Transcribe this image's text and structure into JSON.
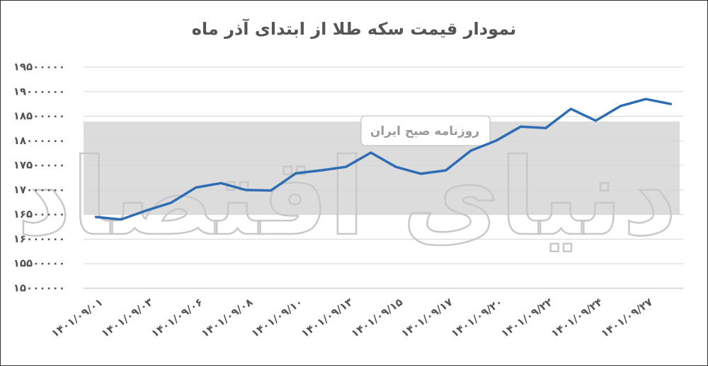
{
  "chart_data": {
    "type": "line",
    "title": "نمودار قیمت سکه طلا از ابتدای آذر ماه",
    "watermark": "دنیای اقتصاد",
    "watermark_subtitle": "روزنامه صبح ایران",
    "categories": [
      "۱۴۰۱/۰۹/۰۱",
      null,
      "۱۴۰۱/۰۹/۰۳",
      null,
      "۱۴۰۱/۰۹/۰۶",
      null,
      "۱۴۰۱/۰۹/۰۸",
      null,
      "۱۴۰۱/۰۹/۱۰",
      null,
      "۱۴۰۱/۰۹/۱۳",
      null,
      "۱۴۰۱/۰۹/۱۵",
      null,
      "۱۴۰۱/۰۹/۱۷",
      null,
      "۱۴۰۱/۰۹/۲۰",
      null,
      "۱۴۰۱/۰۹/۲۲",
      null,
      "۱۴۰۱/۰۹/۲۴",
      null,
      "۱۴۰۱/۰۹/۲۷",
      null
    ],
    "series": [
      {
        "name": "قیمت سکه",
        "color": "#2e6db4",
        "values": [
          16450000,
          16400000,
          16580000,
          16740000,
          17050000,
          17140000,
          17000000,
          16990000,
          17340000,
          17400000,
          17470000,
          17760000,
          17470000,
          17330000,
          17400000,
          17800000,
          18000000,
          18290000,
          18260000,
          18650000,
          18410000,
          18710000,
          18850000,
          18750000
        ]
      }
    ],
    "ylim": [
      15000000,
      19500000
    ],
    "yticks": [
      {
        "value": 15000000,
        "label": "۱۵۰۰۰۰۰۰"
      },
      {
        "value": 15500000,
        "label": "۱۵۵۰۰۰۰۰"
      },
      {
        "value": 16000000,
        "label": "۱۶۰۰۰۰۰۰"
      },
      {
        "value": 16500000,
        "label": "۱۶۵۰۰۰۰۰"
      },
      {
        "value": 17000000,
        "label": "۱۷۰۰۰۰۰۰"
      },
      {
        "value": 17500000,
        "label": "۱۷۵۰۰۰۰۰"
      },
      {
        "value": 18000000,
        "label": "۱۸۰۰۰۰۰۰"
      },
      {
        "value": 18500000,
        "label": "۱۸۵۰۰۰۰۰"
      },
      {
        "value": 19000000,
        "label": "۱۹۰۰۰۰۰۰"
      },
      {
        "value": 19500000,
        "label": "۱۹۵۰۰۰۰۰"
      }
    ],
    "grid": true
  }
}
